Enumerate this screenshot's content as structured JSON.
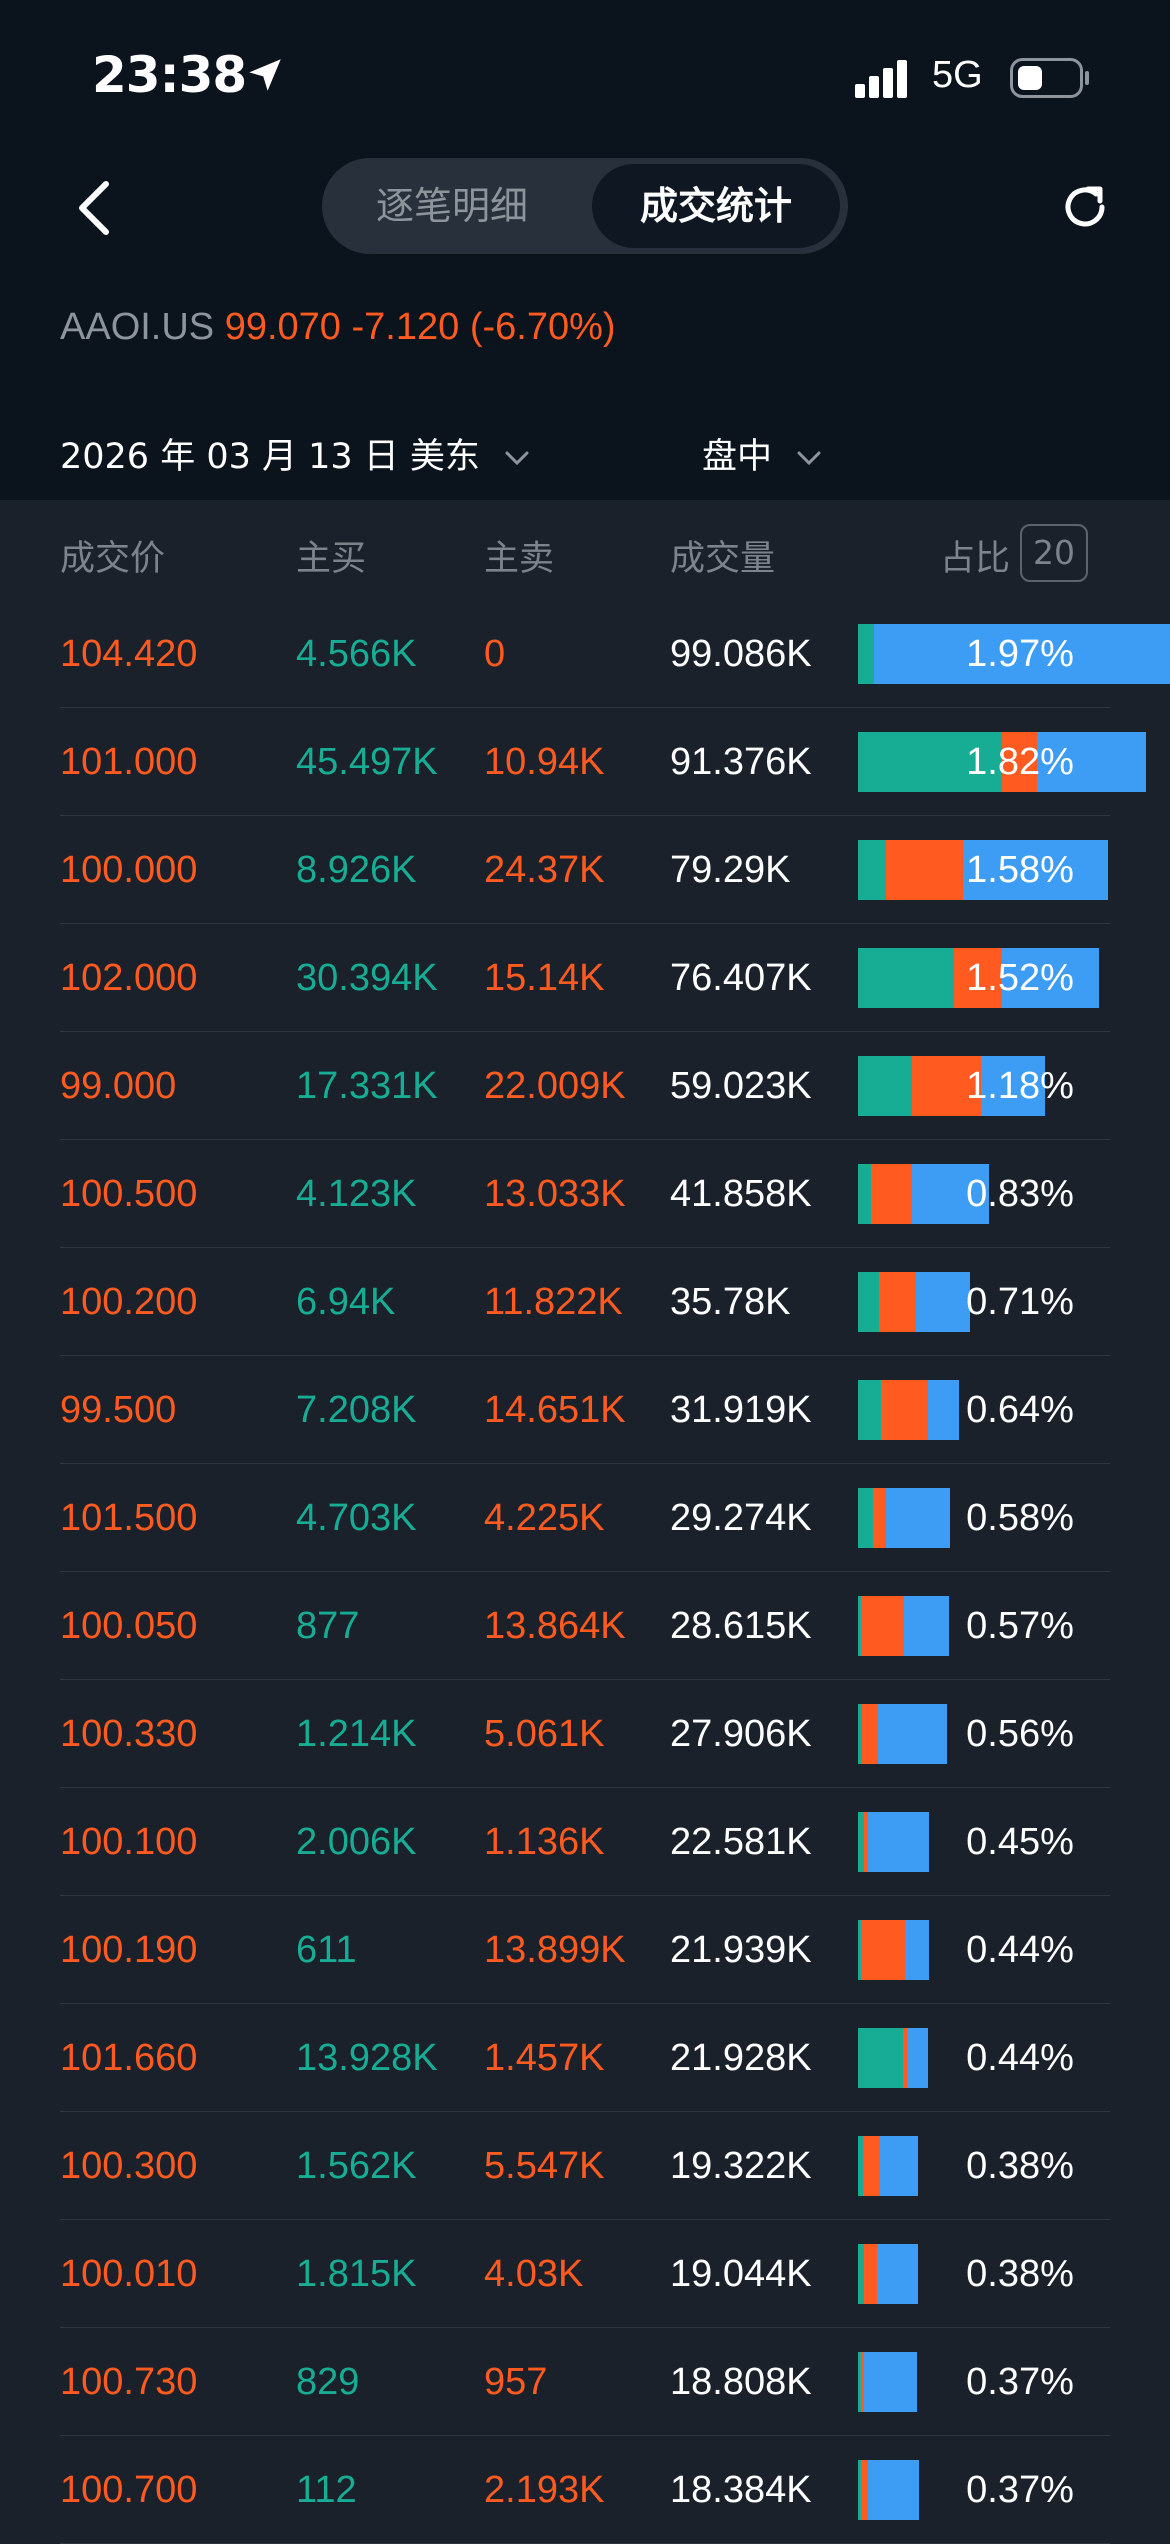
{
  "status": {
    "time": "23:38",
    "network": "5G"
  },
  "tabs": [
    {
      "label": "逐笔明细"
    },
    {
      "label": "成交统计"
    }
  ],
  "quote": {
    "symbol": "AAOI.US",
    "price": "99.070",
    "change": "-7.120",
    "change_pct": "(-6.70%)"
  },
  "filters": {
    "date": "2026 年 03 月 13 日 美东",
    "session": "盘中"
  },
  "columns": [
    "成交价",
    "主买",
    "主卖",
    "成交量",
    "占比"
  ],
  "top_count": "20",
  "colors": {
    "up": "#17ad95",
    "down": "#ff5a1f",
    "neutral": "#3d9df5"
  },
  "rows": [
    {
      "price": "104.420",
      "buy": "4.566K",
      "sell": "0",
      "volume": "99.086K",
      "pct": "1.97%",
      "buy_frac": 0.05,
      "sell_frac": 0.0
    },
    {
      "price": "101.000",
      "buy": "45.497K",
      "sell": "10.94K",
      "volume": "91.376K",
      "pct": "1.82%",
      "buy_frac": 0.5,
      "sell_frac": 0.12
    },
    {
      "price": "100.000",
      "buy": "8.926K",
      "sell": "24.37K",
      "volume": "79.29K",
      "pct": "1.58%",
      "buy_frac": 0.11,
      "sell_frac": 0.31
    },
    {
      "price": "102.000",
      "buy": "30.394K",
      "sell": "15.14K",
      "volume": "76.407K",
      "pct": "1.52%",
      "buy_frac": 0.4,
      "sell_frac": 0.2
    },
    {
      "price": "99.000",
      "buy": "17.331K",
      "sell": "22.009K",
      "volume": "59.023K",
      "pct": "1.18%",
      "buy_frac": 0.29,
      "sell_frac": 0.37
    },
    {
      "price": "100.500",
      "buy": "4.123K",
      "sell": "13.033K",
      "volume": "41.858K",
      "pct": "0.83%",
      "buy_frac": 0.1,
      "sell_frac": 0.31
    },
    {
      "price": "100.200",
      "buy": "6.94K",
      "sell": "11.822K",
      "volume": "35.78K",
      "pct": "0.71%",
      "buy_frac": 0.19,
      "sell_frac": 0.33
    },
    {
      "price": "99.500",
      "buy": "7.208K",
      "sell": "14.651K",
      "volume": "31.919K",
      "pct": "0.64%",
      "buy_frac": 0.23,
      "sell_frac": 0.46
    },
    {
      "price": "101.500",
      "buy": "4.703K",
      "sell": "4.225K",
      "volume": "29.274K",
      "pct": "0.58%",
      "buy_frac": 0.16,
      "sell_frac": 0.14
    },
    {
      "price": "100.050",
      "buy": "877",
      "sell": "13.864K",
      "volume": "28.615K",
      "pct": "0.57%",
      "buy_frac": 0.03,
      "sell_frac": 0.48
    },
    {
      "price": "100.330",
      "buy": "1.214K",
      "sell": "5.061K",
      "volume": "27.906K",
      "pct": "0.56%",
      "buy_frac": 0.04,
      "sell_frac": 0.18
    },
    {
      "price": "100.100",
      "buy": "2.006K",
      "sell": "1.136K",
      "volume": "22.581K",
      "pct": "0.45%",
      "buy_frac": 0.09,
      "sell_frac": 0.05
    },
    {
      "price": "100.190",
      "buy": "611",
      "sell": "13.899K",
      "volume": "21.939K",
      "pct": "0.44%",
      "buy_frac": 0.03,
      "sell_frac": 0.63
    },
    {
      "price": "101.660",
      "buy": "13.928K",
      "sell": "1.457K",
      "volume": "21.928K",
      "pct": "0.44%",
      "buy_frac": 0.64,
      "sell_frac": 0.07
    },
    {
      "price": "100.300",
      "buy": "1.562K",
      "sell": "5.547K",
      "volume": "19.322K",
      "pct": "0.38%",
      "buy_frac": 0.08,
      "sell_frac": 0.29
    },
    {
      "price": "100.010",
      "buy": "1.815K",
      "sell": "4.03K",
      "volume": "19.044K",
      "pct": "0.38%",
      "buy_frac": 0.1,
      "sell_frac": 0.21
    },
    {
      "price": "100.730",
      "buy": "829",
      "sell": "957",
      "volume": "18.808K",
      "pct": "0.37%",
      "buy_frac": 0.04,
      "sell_frac": 0.05
    },
    {
      "price": "100.700",
      "buy": "112",
      "sell": "2.193K",
      "volume": "18.384K",
      "pct": "0.37%",
      "buy_frac": 0.01,
      "sell_frac": 0.12
    }
  ]
}
